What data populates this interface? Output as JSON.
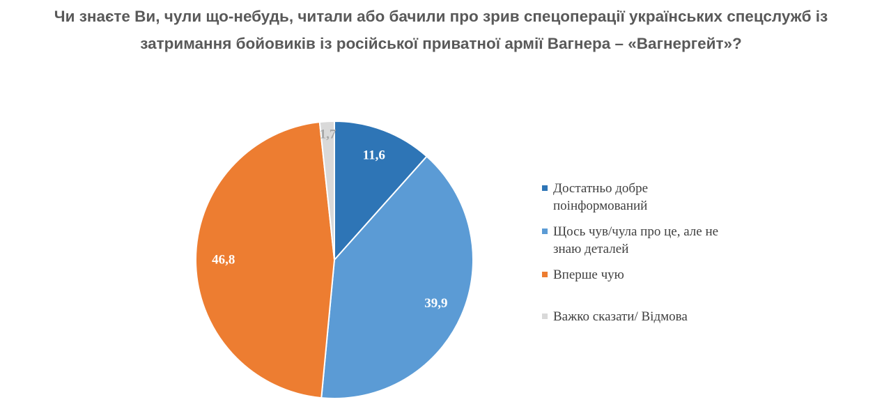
{
  "chart_data": {
    "type": "pie",
    "title": "Чи знаєте Ви, чули що-небудь, читали або бачили про зрив спецоперації українських спецслужб із затримання бойовиків із російської приватної армії Вагнера  – «Вагнергейт»?",
    "categories": [
      "Достатньо добре поінформований",
      "Щось чув/чула про це, але не знаю деталей",
      "Вперше чую",
      "Важко сказати/ Відмова"
    ],
    "values": [
      11.6,
      39.9,
      46.8,
      1.7
    ],
    "value_labels": [
      "11,6",
      "39,9",
      "46,8",
      "1,7"
    ],
    "colors": [
      "#2e75b6",
      "#5b9bd5",
      "#ed7d31",
      "#d9d9d9"
    ],
    "legend": "right"
  }
}
